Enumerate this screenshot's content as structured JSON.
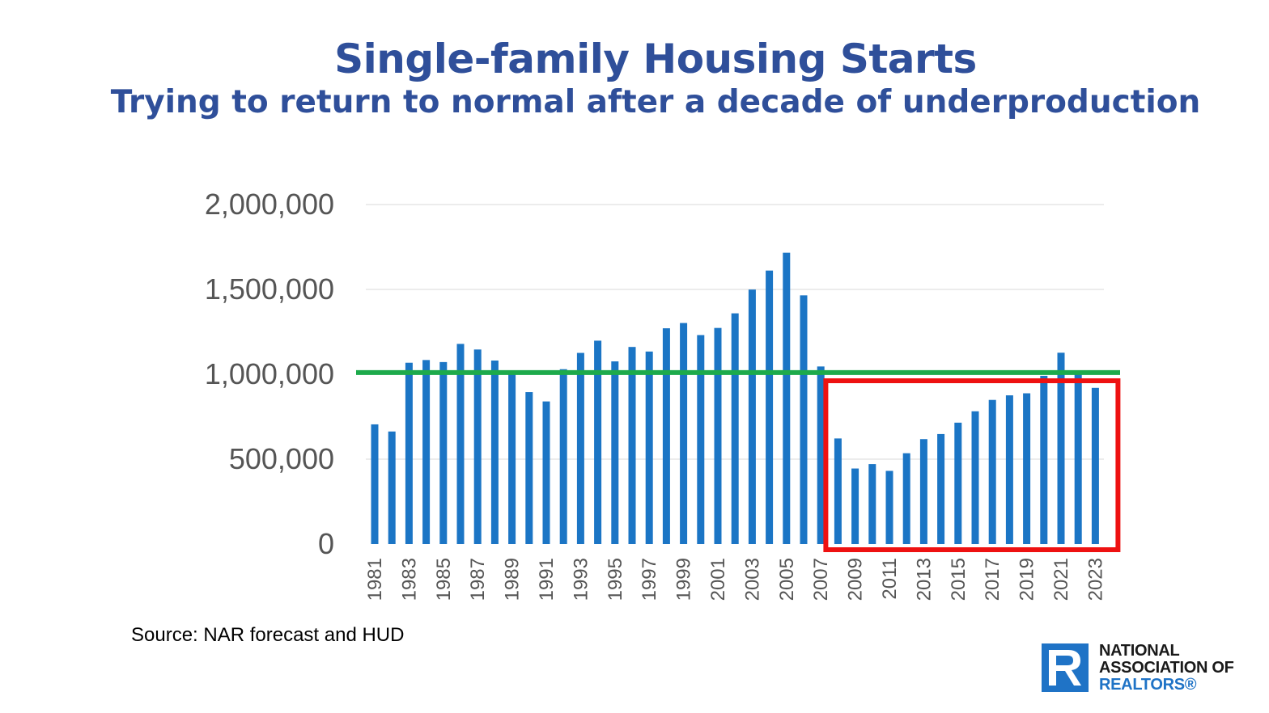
{
  "header": {
    "title": "Single-family Housing Starts",
    "subtitle": "Trying to return to normal after a decade of underproduction"
  },
  "source_note": "Source: NAR forecast and HUD",
  "logo": {
    "line1": "NATIONAL",
    "line2": "ASSOCIATION OF",
    "line3": "REALTORS®",
    "color": "#1F73C6"
  },
  "chart_data": {
    "type": "bar",
    "title": "Single-family Housing Starts",
    "subtitle": "Trying to return to normal after a decade of underproduction",
    "xlabel": "",
    "ylabel": "",
    "ylim": [
      0,
      2000000
    ],
    "yticks": [
      0,
      500000,
      1000000,
      1500000,
      2000000
    ],
    "ytick_labels": [
      "0",
      "500,000",
      "1,000,000",
      "1,500,000",
      "2,000,000"
    ],
    "categories": [
      "1981",
      "1982",
      "1983",
      "1984",
      "1985",
      "1986",
      "1987",
      "1988",
      "1989",
      "1990",
      "1991",
      "1992",
      "1993",
      "1994",
      "1995",
      "1996",
      "1997",
      "1998",
      "1999",
      "2000",
      "2001",
      "2002",
      "2003",
      "2004",
      "2005",
      "2006",
      "2007",
      "2008",
      "2009",
      "2010",
      "2011",
      "2012",
      "2013",
      "2014",
      "2015",
      "2016",
      "2017",
      "2018",
      "2019",
      "2020",
      "2021",
      "2022",
      "2023"
    ],
    "xtick_labels": [
      "1981",
      "1983",
      "1985",
      "1987",
      "1989",
      "1991",
      "1993",
      "1995",
      "1997",
      "1999",
      "2001",
      "2003",
      "2005",
      "2007",
      "2009",
      "2011",
      "2013",
      "2015",
      "2017",
      "2019",
      "2021",
      "2023"
    ],
    "values": [
      705000,
      663000,
      1068000,
      1084000,
      1072000,
      1179000,
      1146000,
      1081000,
      1003000,
      895000,
      840000,
      1030000,
      1126000,
      1198000,
      1076000,
      1161000,
      1134000,
      1271000,
      1302000,
      1231000,
      1273000,
      1359000,
      1499000,
      1611000,
      1716000,
      1465000,
      1046000,
      622000,
      445000,
      471000,
      431000,
      535000,
      618000,
      648000,
      715000,
      782000,
      849000,
      876000,
      888000,
      991000,
      1127000,
      1005000,
      920000
    ],
    "bar_color": "#1B75C5",
    "grid": true,
    "reference_line": {
      "value": 1010000,
      "color": "#1DAA4B"
    },
    "highlight_box": {
      "from": "2008",
      "to": "2023",
      "color": "#EE1111"
    }
  }
}
